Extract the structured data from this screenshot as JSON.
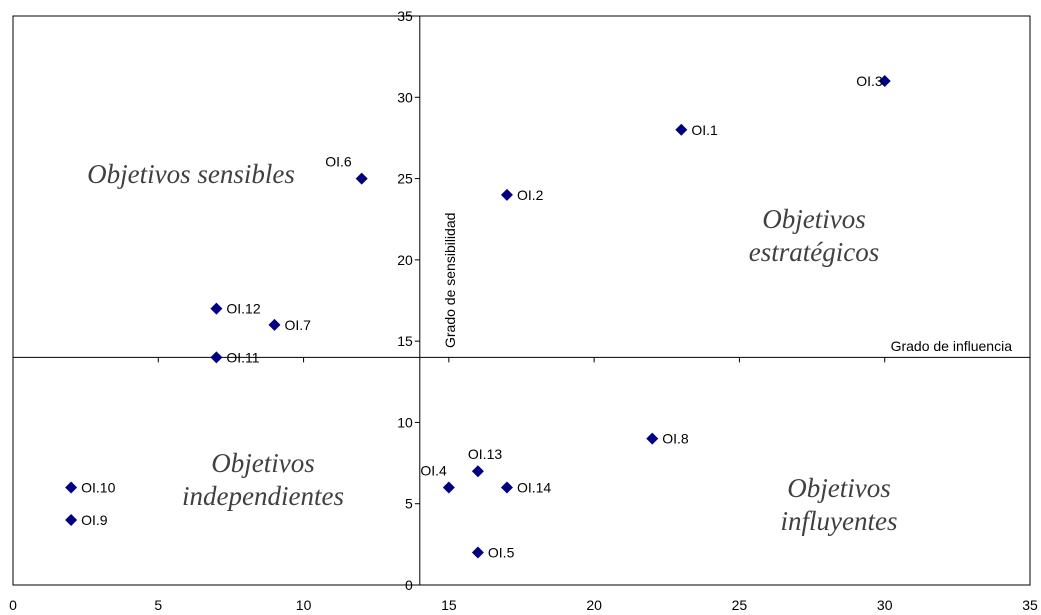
{
  "chart_data": {
    "type": "scatter",
    "x_axis": {
      "label": "Grado de influencia",
      "range": [
        0,
        35
      ],
      "ticks": [
        0,
        5,
        10,
        15,
        20,
        25,
        30,
        35
      ]
    },
    "y_axis": {
      "label": "Grado de sensibilidad",
      "range": [
        0,
        35
      ],
      "ticks": [
        0,
        5,
        10,
        15,
        20,
        25,
        30,
        35
      ]
    },
    "axis_crossing": {
      "x": 14,
      "y": 14
    },
    "marker": {
      "shape": "diamond",
      "color": "#000080"
    },
    "points": [
      {
        "label": "OI.1",
        "x": 23,
        "y": 28
      },
      {
        "label": "OI.2",
        "x": 17,
        "y": 24
      },
      {
        "label": "OI.3",
        "x": 30,
        "y": 31
      },
      {
        "label": "OI.4",
        "x": 15,
        "y": 6
      },
      {
        "label": "OI.5",
        "x": 16,
        "y": 2
      },
      {
        "label": "OI.6",
        "x": 12,
        "y": 25
      },
      {
        "label": "OI.7",
        "x": 9,
        "y": 16
      },
      {
        "label": "OI.8",
        "x": 22,
        "y": 9
      },
      {
        "label": "OI.9",
        "x": 2,
        "y": 4
      },
      {
        "label": "OI.10",
        "x": 2,
        "y": 6
      },
      {
        "label": "OI.11",
        "x": 7,
        "y": 14
      },
      {
        "label": "OI.12",
        "x": 7,
        "y": 17
      },
      {
        "label": "OI.13",
        "x": 16,
        "y": 7
      },
      {
        "label": "OI.14",
        "x": 17,
        "y": 6
      }
    ],
    "quadrant_labels": [
      {
        "lines": [
          "Objetivos sensibles"
        ],
        "quadrant": "top-left"
      },
      {
        "lines": [
          "Objetivos",
          "estratégicos"
        ],
        "quadrant": "top-right"
      },
      {
        "lines": [
          "Objetivos",
          "independientes"
        ],
        "quadrant": "bottom-left"
      },
      {
        "lines": [
          "Objetivos",
          "influyentes"
        ],
        "quadrant": "bottom-right"
      }
    ],
    "grid": false,
    "legend": "none"
  }
}
